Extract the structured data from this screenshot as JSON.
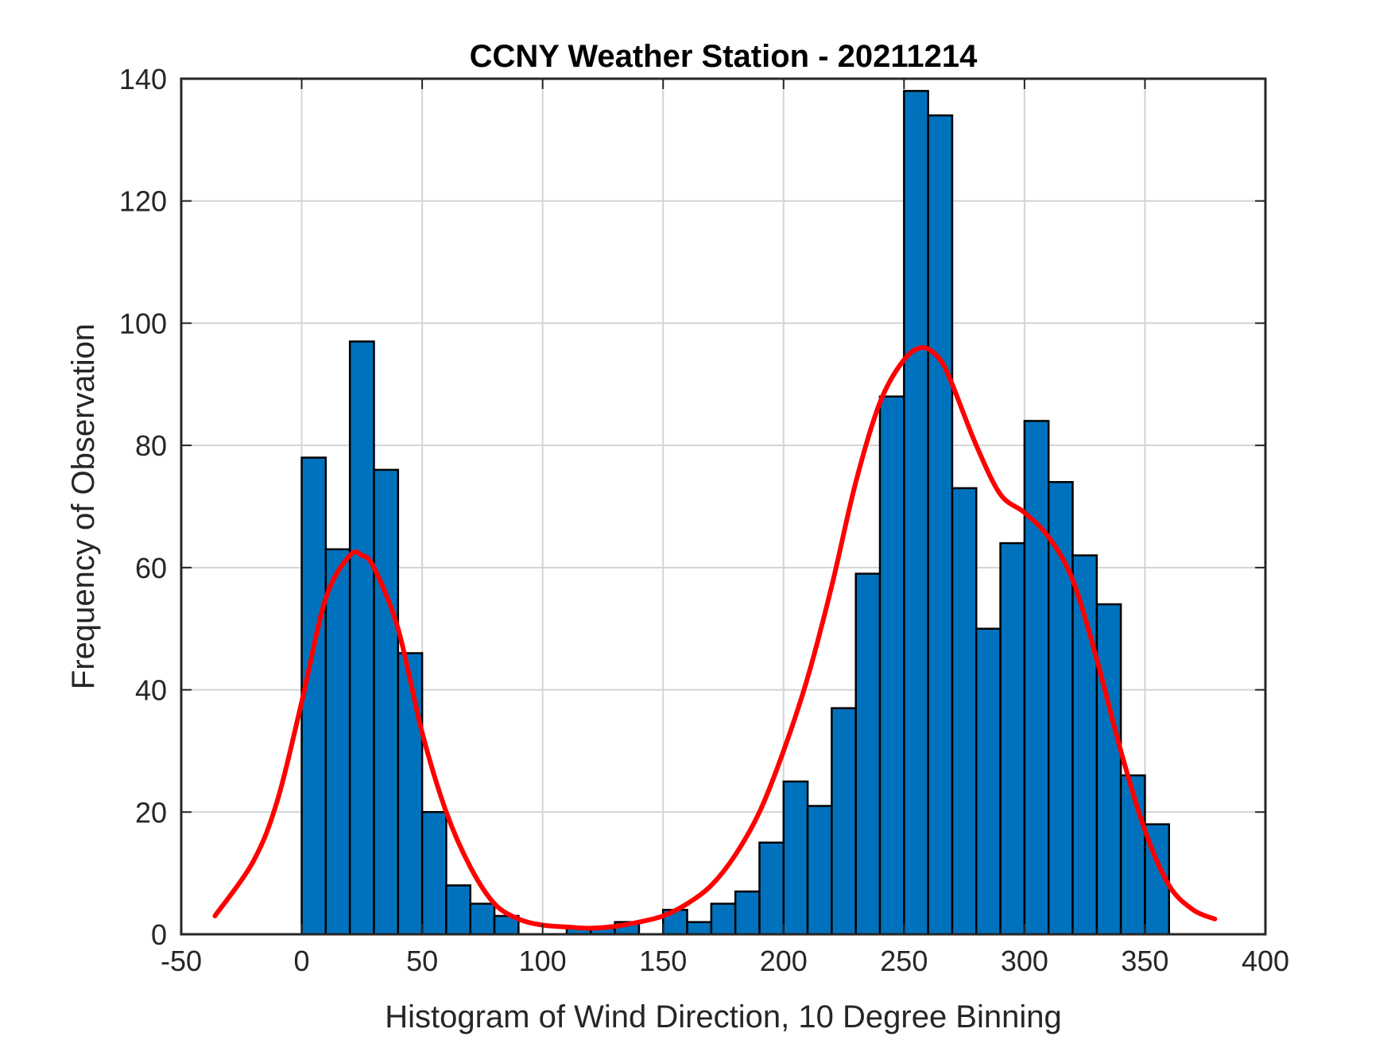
{
  "chart_data": {
    "type": "bar",
    "title": "CCNY Weather Station - 20211214",
    "xlabel": "Histogram of Wind Direction, 10 Degree Binning",
    "ylabel": "Frequency of Observation",
    "xlim": [
      -50,
      400
    ],
    "ylim": [
      0,
      140
    ],
    "xticks": [
      "-50",
      "0",
      "50",
      "100",
      "150",
      "200",
      "250",
      "300",
      "350",
      "400"
    ],
    "yticks": [
      "0",
      "20",
      "40",
      "60",
      "80",
      "100",
      "120",
      "140"
    ],
    "grid": true,
    "bin_width": 10,
    "bins": [
      {
        "start": 0,
        "count": 78
      },
      {
        "start": 10,
        "count": 63
      },
      {
        "start": 20,
        "count": 97
      },
      {
        "start": 30,
        "count": 76
      },
      {
        "start": 40,
        "count": 46
      },
      {
        "start": 50,
        "count": 20
      },
      {
        "start": 60,
        "count": 8
      },
      {
        "start": 70,
        "count": 5
      },
      {
        "start": 80,
        "count": 3
      },
      {
        "start": 90,
        "count": 0
      },
      {
        "start": 100,
        "count": 0
      },
      {
        "start": 110,
        "count": 1
      },
      {
        "start": 120,
        "count": 1
      },
      {
        "start": 130,
        "count": 2
      },
      {
        "start": 140,
        "count": 0
      },
      {
        "start": 150,
        "count": 4
      },
      {
        "start": 160,
        "count": 2
      },
      {
        "start": 170,
        "count": 5
      },
      {
        "start": 180,
        "count": 7
      },
      {
        "start": 190,
        "count": 15
      },
      {
        "start": 200,
        "count": 25
      },
      {
        "start": 210,
        "count": 21
      },
      {
        "start": 220,
        "count": 37
      },
      {
        "start": 230,
        "count": 59
      },
      {
        "start": 240,
        "count": 88
      },
      {
        "start": 250,
        "count": 138
      },
      {
        "start": 260,
        "count": 134
      },
      {
        "start": 270,
        "count": 73
      },
      {
        "start": 280,
        "count": 50
      },
      {
        "start": 290,
        "count": 64
      },
      {
        "start": 300,
        "count": 84
      },
      {
        "start": 310,
        "count": 74
      },
      {
        "start": 320,
        "count": 62
      },
      {
        "start": 330,
        "count": 54
      },
      {
        "start": 340,
        "count": 26
      },
      {
        "start": 350,
        "count": 18
      }
    ],
    "fit_curve": {
      "x": [
        -36,
        -20,
        -10,
        0,
        10,
        20,
        25,
        30,
        40,
        50,
        60,
        70,
        80,
        90,
        100,
        110,
        120,
        130,
        140,
        150,
        160,
        170,
        180,
        190,
        200,
        210,
        220,
        230,
        240,
        250,
        258,
        265,
        270,
        280,
        290,
        300,
        310,
        320,
        330,
        340,
        350,
        360,
        370,
        379
      ],
      "y": [
        3,
        12,
        22,
        38,
        55,
        62,
        62,
        60,
        50,
        33,
        20,
        11,
        5,
        2.5,
        1.5,
        1.2,
        1,
        1.3,
        2,
        3,
        5,
        8,
        13,
        20,
        30,
        42,
        57,
        74,
        87,
        94,
        96,
        94,
        90,
        80,
        72,
        69,
        65,
        58,
        45,
        30,
        17,
        8,
        4,
        2.5
      ],
      "color": "#ff0000"
    },
    "bar_color": "#0072bd"
  }
}
